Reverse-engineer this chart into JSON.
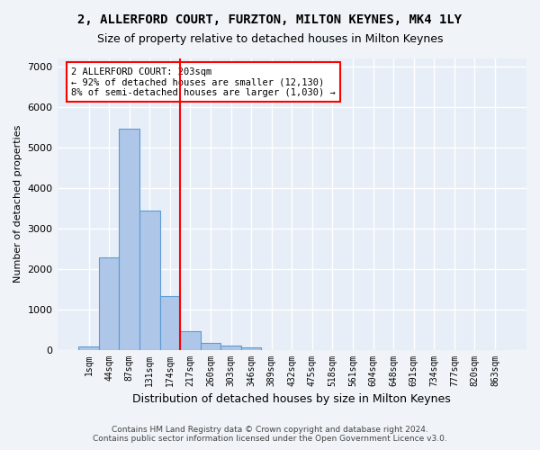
{
  "title": "2, ALLERFORD COURT, FURZTON, MILTON KEYNES, MK4 1LY",
  "subtitle": "Size of property relative to detached houses in Milton Keynes",
  "xlabel": "Distribution of detached houses by size in Milton Keynes",
  "ylabel": "Number of detached properties",
  "bar_color": "#aec6e8",
  "bar_edge_color": "#5b9bd5",
  "bg_color": "#e8eef7",
  "grid_color": "#ffffff",
  "vline_color": "red",
  "annotation_title": "2 ALLERFORD COURT: 203sqm",
  "annotation_line1": "← 92% of detached houses are smaller (12,130)",
  "annotation_line2": "8% of semi-detached houses are larger (1,030) →",
  "bin_labels": [
    "1sqm",
    "44sqm",
    "87sqm",
    "131sqm",
    "174sqm",
    "217sqm",
    "260sqm",
    "303sqm",
    "346sqm",
    "389sqm",
    "432sqm",
    "475sqm",
    "518sqm",
    "561sqm",
    "604sqm",
    "648sqm",
    "691sqm",
    "734sqm",
    "777sqm",
    "820sqm",
    "863sqm"
  ],
  "bar_heights": [
    75,
    2280,
    5470,
    3440,
    1330,
    460,
    165,
    105,
    55,
    0,
    0,
    0,
    0,
    0,
    0,
    0,
    0,
    0,
    0,
    0,
    0
  ],
  "ylim": [
    0,
    7200
  ],
  "yticks": [
    0,
    1000,
    2000,
    3000,
    4000,
    5000,
    6000,
    7000
  ],
  "footer_line1": "Contains HM Land Registry data © Crown copyright and database right 2024.",
  "footer_line2": "Contains public sector information licensed under the Open Government Licence v3.0."
}
